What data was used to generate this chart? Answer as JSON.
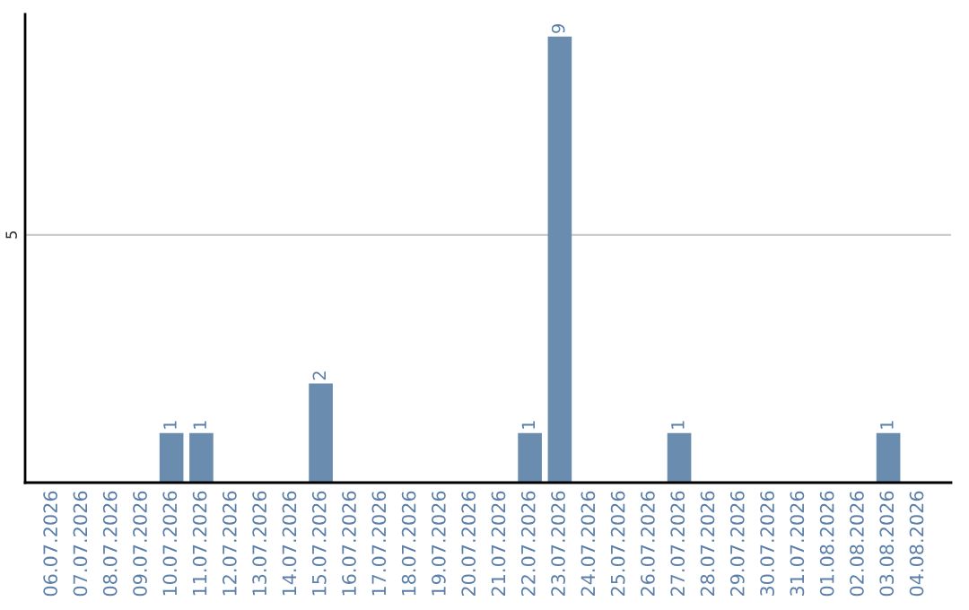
{
  "chart_data": {
    "type": "bar",
    "categories": [
      "06.07.2026",
      "07.07.2026",
      "08.07.2026",
      "09.07.2026",
      "10.07.2026",
      "11.07.2026",
      "12.07.2026",
      "13.07.2026",
      "14.07.2026",
      "15.07.2026",
      "16.07.2026",
      "17.07.2026",
      "18.07.2026",
      "19.07.2026",
      "20.07.2026",
      "21.07.2026",
      "22.07.2026",
      "23.07.2026",
      "24.07.2026",
      "25.07.2026",
      "26.07.2026",
      "27.07.2026",
      "28.07.2026",
      "29.07.2026",
      "30.07.2026",
      "31.07.2026",
      "01.08.2026",
      "02.08.2026",
      "03.08.2026",
      "04.08.2026"
    ],
    "values": [
      0,
      0,
      0,
      0,
      1,
      1,
      0,
      0,
      0,
      2,
      0,
      0,
      0,
      0,
      0,
      0,
      1,
      9,
      0,
      0,
      0,
      1,
      0,
      0,
      0,
      0,
      0,
      0,
      1,
      0
    ],
    "value_labels": [
      null,
      null,
      null,
      null,
      "1",
      "1",
      null,
      null,
      null,
      "2",
      null,
      null,
      null,
      null,
      null,
      null,
      "1",
      "9",
      null,
      null,
      null,
      "1",
      null,
      null,
      null,
      null,
      null,
      null,
      "1",
      null
    ],
    "color": "#6a8caf",
    "ylim": [
      0,
      9.45
    ],
    "yticks": [
      5
    ],
    "grid": "y"
  }
}
